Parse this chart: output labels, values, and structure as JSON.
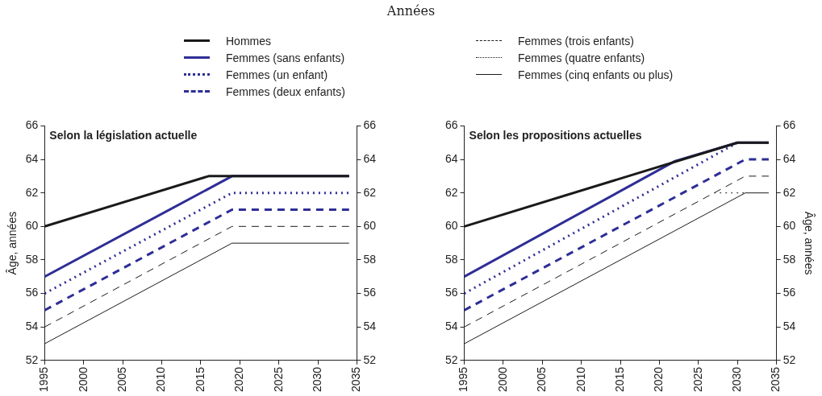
{
  "chart_data": [
    {
      "type": "line",
      "subtitle": "Selon la législation actuelle",
      "ylabel": "Âge, années",
      "xlim": [
        1995,
        2035
      ],
      "xticks": [
        1995,
        2000,
        2005,
        2010,
        2015,
        2020,
        2025,
        2030,
        2035
      ],
      "ylim": [
        52,
        66
      ],
      "yticks": [
        52,
        54,
        56,
        58,
        60,
        62,
        64,
        66
      ],
      "y2lim": [
        52,
        66
      ],
      "y2ticks": [
        52,
        54,
        56,
        58,
        60,
        62,
        64,
        66
      ],
      "grid": false,
      "series": [
        {
          "color": "#1a1a1a",
          "line_style": "solid",
          "x": [
            1995,
            2016,
            2034
          ],
          "values": [
            60,
            63,
            63
          ]
        },
        {
          "color": "#2e2e96",
          "line_style": "solid",
          "x": [
            1995,
            2019,
            2034
          ],
          "values": [
            57,
            63,
            63
          ]
        },
        {
          "color": "#2e2e96",
          "line_style": "dotted",
          "x": [
            1995,
            2019,
            2034
          ],
          "values": [
            56,
            62,
            62
          ]
        },
        {
          "color": "#2e2e96",
          "line_style": "dashed",
          "x": [
            1995,
            2019,
            2034
          ],
          "values": [
            55,
            61,
            61
          ]
        },
        {
          "color": "#1a1a1a",
          "line_style": "dashed",
          "x": [
            1995,
            2019,
            2034
          ],
          "values": [
            54,
            60,
            60
          ]
        },
        {
          "color": "#1a1a1a",
          "line_style": "solid",
          "x": [
            1995,
            2019,
            2034
          ],
          "values": [
            53,
            59,
            59
          ]
        }
      ]
    },
    {
      "type": "line",
      "title": "Années",
      "subtitle": "Selon les propositions actuelles",
      "y2label": "Âge, années",
      "legend": "top",
      "xlim": [
        1995,
        2035
      ],
      "xticks": [
        1995,
        2000,
        2005,
        2010,
        2015,
        2020,
        2025,
        2030,
        2035
      ],
      "ylim": [
        52,
        66
      ],
      "yticks": [
        52,
        54,
        56,
        58,
        60,
        62,
        64,
        66
      ],
      "y2lim": [
        52,
        66
      ],
      "y2ticks": [
        52,
        54,
        56,
        58,
        60,
        62,
        64,
        66
      ],
      "grid": false,
      "series": [
        {
          "name": "Hommes",
          "color": "#1a1a1a",
          "line_style": "solid",
          "x": [
            1995,
            2030,
            2034
          ],
          "values": [
            60,
            65,
            65
          ]
        },
        {
          "name": "Femmes (sans enfants)",
          "color": "#2e2e96",
          "line_style": "solid",
          "x": [
            1995,
            2022,
            2030,
            2034
          ],
          "values": [
            57,
            63.9,
            65,
            65
          ]
        },
        {
          "name": "Femmes (un enfant)",
          "color": "#2e2e96",
          "line_style": "dotted",
          "x": [
            1995,
            2030
          ],
          "values": [
            56,
            65
          ]
        },
        {
          "name": "Femmes (deux enfants)",
          "color": "#2e2e96",
          "line_style": "dashed",
          "x": [
            1995,
            2031,
            2034
          ],
          "values": [
            55,
            64,
            64
          ]
        },
        {
          "name": "Femmes (trois enfants)",
          "color": "#1a1a1a",
          "line_style": "dashed",
          "x": [
            1995,
            2031,
            2034
          ],
          "values": [
            54,
            63,
            63
          ]
        },
        {
          "name": "Femmes (quatre enfants)",
          "color": "#1a1a1a",
          "line_style": "dotted",
          "x": [
            2027,
            2031
          ],
          "values": [
            62,
            62
          ]
        },
        {
          "name": "Femmes (cinq enfants ou plus)",
          "color": "#1a1a1a",
          "line_style": "solid",
          "x": [
            1995,
            2031,
            2034
          ],
          "values": [
            53,
            62,
            62
          ]
        }
      ]
    }
  ]
}
